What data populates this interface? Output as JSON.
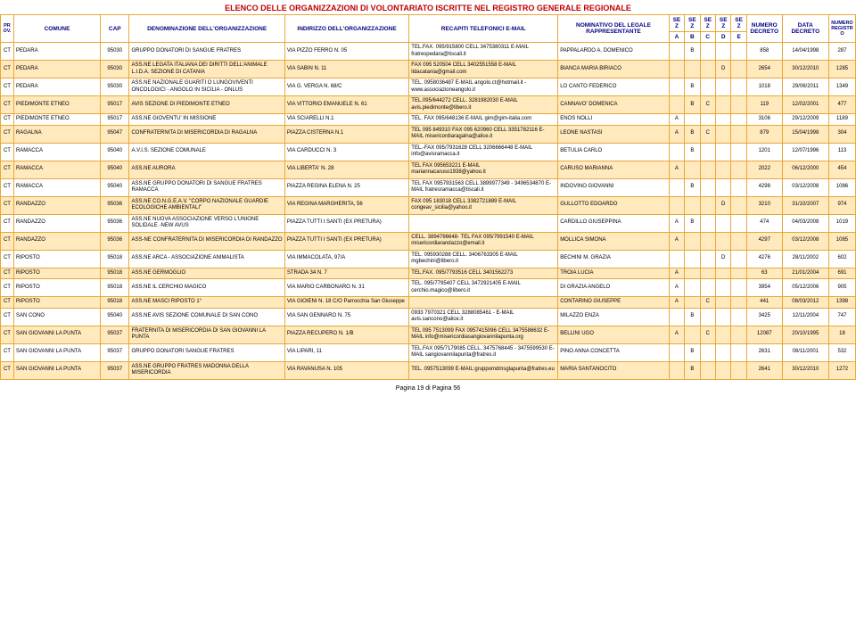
{
  "title": "ELENCO DELLE ORGANIZZAZIONI DI VOLONTARIATO ISCRITTE NEL REGISTRO GENERALE REGIONALE",
  "footer": "Pagina 19 di Pagina 56",
  "headers": {
    "prov": "PROV.",
    "comune": "COMUNE",
    "cap": "CAP",
    "denom": "DENOMINAZIONE DELL'ORGANIZZAZIONE",
    "indir": "INDIRIZZO DELL'ORGANIZZAZIONE",
    "recap": "RECAPITI TELEFONICI E-MAIL",
    "nomin": "NOMINATIVO DEL LEGALE RAPPRESENTANTE",
    "sez": "SEZ",
    "sa": "A",
    "sb": "B",
    "sc": "C",
    "sd": "D",
    "se": "E",
    "ndec": "NUMERO DECRETO",
    "ddec": "DATA DECRETO",
    "nreg": "NUMERO REGISTRO"
  },
  "rows": [
    {
      "prov": "CT",
      "comune": "PEDARA",
      "cap": "95030",
      "denom": "GRUPPO DONATORI DI SANGUE FRATRES",
      "indir": "VIA PIZZO FERRO N. 05",
      "recap": "TEL.FAX. 095/915800 CELL 3475380311 E-MAIL fratrespedara@tiscali.it",
      "nomin": "PAPPALARDO A. DOMENICO",
      "a": "",
      "b": "B",
      "c": "",
      "d": "",
      "e": "",
      "ndec": "858",
      "ddec": "14/04/1998",
      "nreg": "287"
    },
    {
      "prov": "CT",
      "comune": "PEDARA",
      "cap": "95030",
      "denom": "ASS.NE LEGATA ITALIANA DEI DIRITTI DELL'ANIMALE L.I.D.A. SEZIONE DI CATANIA",
      "indir": "VIA SABIN N. 11",
      "recap": " FAX 095 520504 CELL 3402551558 E-MAIL lidacatania@gmail.com",
      "nomin": "BIANCA MARIA BIRIACO",
      "a": "",
      "b": "",
      "c": "",
      "d": "D",
      "e": "",
      "ndec": "2654",
      "ddec": "30/12/2010",
      "nreg": "1285"
    },
    {
      "prov": "CT",
      "comune": "PEDARA",
      "cap": "95030",
      "denom": "ASS.NE NAZIONALE GUARITI O LUNGOVIVENTI ONCOLOGICI - ANGOLO IN SICILIA - ONLUS",
      "indir": "VIA G. VERGA N. 68/C",
      "recap": "TEL. 0958036487 E-MAIL angolo.ct@hotmail.it - www.associazioneangolo.it",
      "nomin": "LO CANTO FEDERICO",
      "a": "",
      "b": "B",
      "c": "",
      "d": "",
      "e": "",
      "ndec": "1018",
      "ddec": "29/06/2011",
      "nreg": "1349"
    },
    {
      "prov": "CT",
      "comune": "PIEDIMONTE ETNEO",
      "cap": "95017",
      "denom": "AVIS SEZIONE DI PIEDIMONTE ETNEO",
      "indir": "VIA VITTORIO EMANUELE N. 61",
      "recap": "TEL.095/644272 CELL. 3281982030 E-MAIL avis.piedimonte@libero.it",
      "nomin": "CANNAVO' DOMENICA",
      "a": "",
      "b": "B",
      "c": "C",
      "d": "",
      "e": "",
      "ndec": "119",
      "ddec": "12/02/2001",
      "nreg": "477"
    },
    {
      "prov": "CT",
      "comune": "PIEDIMONTE ETNEO",
      "cap": "95017",
      "denom": "ASS.NE GIOVENTU' IN MISSIONE",
      "indir": "VIA SCIARELLI N.1",
      "recap": "TEL. FAX 095/648136 E-MAIL gim@gim-italia.com",
      "nomin": "ENOS NOLLI",
      "a": "A",
      "b": "",
      "c": "",
      "d": "",
      "e": "",
      "ndec": "3106",
      "ddec": "29/12/2009",
      "nreg": "1189"
    },
    {
      "prov": "CT",
      "comune": "RAGALNA",
      "cap": "95047",
      "denom": "CONFRATERNITA DI MISERICORDIA DI RAGALNA",
      "indir": "PIAZZA CISTERNA N.1",
      "recap": "TEL 095 849310 FAX 095 620960 CELL 3351782116 E-MAIL misericordiaragalna@alice.it",
      "nomin": "LEONE NASTASI",
      "a": "A",
      "b": "B",
      "c": "C",
      "d": "",
      "e": "",
      "ndec": "879",
      "ddec": "15/04/1998",
      "nreg": "304"
    },
    {
      "prov": "CT",
      "comune": "RAMACCA",
      "cap": "95040",
      "denom": "A.V.I.S. SEZIONE COMUNALE",
      "indir": "VIA CARDUCCI N. 3",
      "recap": "TEL.-FAX 095/7931628 CELL 3206666448 E-MAIL info@avisramacca.it",
      "nomin": "BETULIA CARLO",
      "a": "",
      "b": "B",
      "c": "",
      "d": "",
      "e": "",
      "ndec": "1201",
      "ddec": "12/07/1996",
      "nreg": "113"
    },
    {
      "prov": "CT",
      "comune": "RAMACCA",
      "cap": "95040",
      "denom": "ASS.NE AURORA",
      "indir": "VIA LIBERTA' N. 28",
      "recap": "TEL FAX 095653221  E-MAIL mariannacaruso1938@yahoo.it",
      "nomin": "CARUSO MARIANNA",
      "a": "A",
      "b": "",
      "c": "",
      "d": "",
      "e": "",
      "ndec": "2022",
      "ddec": "06/12/2000",
      "nreg": "454"
    },
    {
      "prov": "CT",
      "comune": "RAMACCA",
      "cap": "95040",
      "denom": "ASS.NE GRUPPO DONATORI DI SANGUE FRATRES RAMACCA",
      "indir": "PIAZZA REGINA ELENA N. 25",
      "recap": "TEL FAX 0957931563 CELL 3899977349 - 3496534870 E-MAIL fratresramacca@tiscali.it",
      "nomin": "INDOVINO GIOVANNI",
      "a": "",
      "b": "B",
      "c": "",
      "d": "",
      "e": "",
      "ndec": "4298",
      "ddec": "03/12/2008",
      "nreg": "1086"
    },
    {
      "prov": "CT",
      "comune": "RANDAZZO",
      "cap": "95036",
      "denom": "ASS.NE CO.N.G.E.A.V. \"CORPO NAZIONALE GUARDIE ECOLOGICHE AMBIENTALI\"",
      "indir": "VIA REGINA MARGHERITA, 56",
      "recap": "FAX 095 183018 CELL 3382721889 E-MAIL congeav_sicilia@yahoo.it",
      "nomin": "GULLOTTO EDOARDO",
      "a": "",
      "b": "",
      "c": "",
      "d": "D",
      "e": "",
      "ndec": "3210",
      "ddec": "31/10/2007",
      "nreg": "974"
    },
    {
      "prov": "CT",
      "comune": "RANDAZZO",
      "cap": "95036",
      "denom": "ASS.NE NUOVA ASSOCIAZIONE VERSO L'UNIONE SOLIDALE -NEW AVUS",
      "indir": "PIAZZA TUTTI I SANTI (EX PRETURA)",
      "recap": "",
      "nomin": "CARDILLO GIUSEPPINA",
      "a": "A",
      "b": "B",
      "c": "",
      "d": "",
      "e": "",
      "ndec": "474",
      "ddec": "04/03/2008",
      "nreg": "1019"
    },
    {
      "prov": "CT",
      "comune": "RANDAZZO",
      "cap": "95036",
      "denom": "ASS-NE CONFRATERNITA DI MISERICORDIA DI RANDAZZO",
      "indir": "PIAZZA TUTTI I SANTI (EX PRETURA)",
      "recap": "CELL. 3894766648- TEL FAX 095/7991540 E-MAIL misericordiarandazzo@email.it",
      "nomin": "MOLLICA SIMONA",
      "a": "A",
      "b": "",
      "c": "",
      "d": "",
      "e": "",
      "ndec": "4297",
      "ddec": "03/12/2008",
      "nreg": "1085"
    },
    {
      "prov": "CT",
      "comune": "RIPOSTO",
      "cap": "95018",
      "denom": "ASS.NE ARCA - ASSOCIAZIONE ANIMALISTA",
      "indir": "VIA IMMACOLATA, 97/A",
      "recap": "TEL. 095930288 CELL. 3406763305 E-MAIL mgbechini@libero.it",
      "nomin": "BECHINI M. GRAZIA",
      "a": "",
      "b": "",
      "c": "",
      "d": "D",
      "e": "",
      "ndec": "4276",
      "ddec": "28/11/2002",
      "nreg": "602"
    },
    {
      "prov": "CT",
      "comune": "RIPOSTO",
      "cap": "95018",
      "denom": "ASS.NE GERMOGLIO",
      "indir": "STRADA 34 N. 7",
      "recap": "TEL.FAX. 095/7793516 CELL 3401562273",
      "nomin": "TROIA LUCIA",
      "a": "A",
      "b": "",
      "c": "",
      "d": "",
      "e": "",
      "ndec": "63",
      "ddec": "21/01/2004",
      "nreg": "691"
    },
    {
      "prov": "CT",
      "comune": "RIPOSTO",
      "cap": "95018",
      "denom": "ASS.NE IL CERCHIO MAGICO",
      "indir": "VIA MARIO CARBONARO N. 31",
      "recap": "TEL. 095/7795407 CELL 3472921405 E-MAIL cerchio.magico@libero.it",
      "nomin": "DI GRAZIA ANGELO",
      "a": "A",
      "b": "",
      "c": "",
      "d": "",
      "e": "",
      "ndec": "3954",
      "ddec": "05/12/2006",
      "nreg": "905"
    },
    {
      "prov": "CT",
      "comune": "RIPOSTO",
      "cap": "95018",
      "denom": "ASS.NE MASCI RIPOSTO 1°",
      "indir": "VIA GIOIENI N. 18 C/O Parrocchia San Giuseppe",
      "recap": "",
      "nomin": "CONTARINO GIUSEPPE",
      "a": "A",
      "b": "",
      "c": "C",
      "d": "",
      "e": "",
      "ndec": "441",
      "ddec": "08/03/2012",
      "nreg": "1398"
    },
    {
      "prov": "CT",
      "comune": "SAN CONO",
      "cap": "95040",
      "denom": "ASS.NE AVIS SEZIONE COMUNALE DI SAN CONO",
      "indir": "VIA SAN GENNARO N. 75",
      "recap": "0933 7970321 CELL 3288085461 - E-MAIL avis.sancono@alice.it",
      "nomin": "MILAZZO ENZA",
      "a": "",
      "b": "B",
      "c": "",
      "d": "",
      "e": "",
      "ndec": "3425",
      "ddec": "12/11/2004",
      "nreg": "747"
    },
    {
      "prov": "CT",
      "comune": "SAN GIOVANNI LA PUNTA",
      "cap": "95037",
      "denom": "FRATERNITA DI MISERICORDIA DI SAN GIOVANNI LA PUNTA",
      "indir": "PIAZZA RECUPERO N. 1/B",
      "recap": "TEL 095 7513099 FAX 0957415096 CELL 3475586632 E-MAIL info@misericordiasangiovannilapunta.org",
      "nomin": "BELLINI UGO",
      "a": "A",
      "b": "",
      "c": "C",
      "d": "",
      "e": "",
      "ndec": "12087",
      "ddec": "20/10/1995",
      "nreg": "18"
    },
    {
      "prov": "CT",
      "comune": "SAN GIOVANNI LA PUNTA",
      "cap": "95037",
      "denom": "GRUPPO DONATORI SANGUE FRATRES",
      "indir": "VIA LIPARI, 11",
      "recap": "TEL.FAX 095/7179085 CELL. 3475768445 - 3475599530 E-MAIL sangiovannilapunta@fratres.it",
      "nomin": "PINO ANNA CONCETTA",
      "a": "",
      "b": "B",
      "c": "",
      "d": "",
      "e": "",
      "ndec": "2631",
      "ddec": "08/11/2001",
      "nreg": "532"
    },
    {
      "prov": "CT",
      "comune": "SAN GIOVANNI LA PUNTA",
      "cap": "95037",
      "denom": "ASS.NE GRUPPO FRATRES MADONNA DELLA MISERICORDIA",
      "indir": "VIA RAVANUSA N. 105",
      "recap": "TEL. 0957513099  E-MAIL:gruppomdmsglapunta@fratres.eu",
      "nomin": "MARIA SANTANOCITO",
      "a": "",
      "b": "B",
      "c": "",
      "d": "",
      "e": "",
      "ndec": "2641",
      "ddec": "30/12/2010",
      "nreg": "1272"
    }
  ]
}
